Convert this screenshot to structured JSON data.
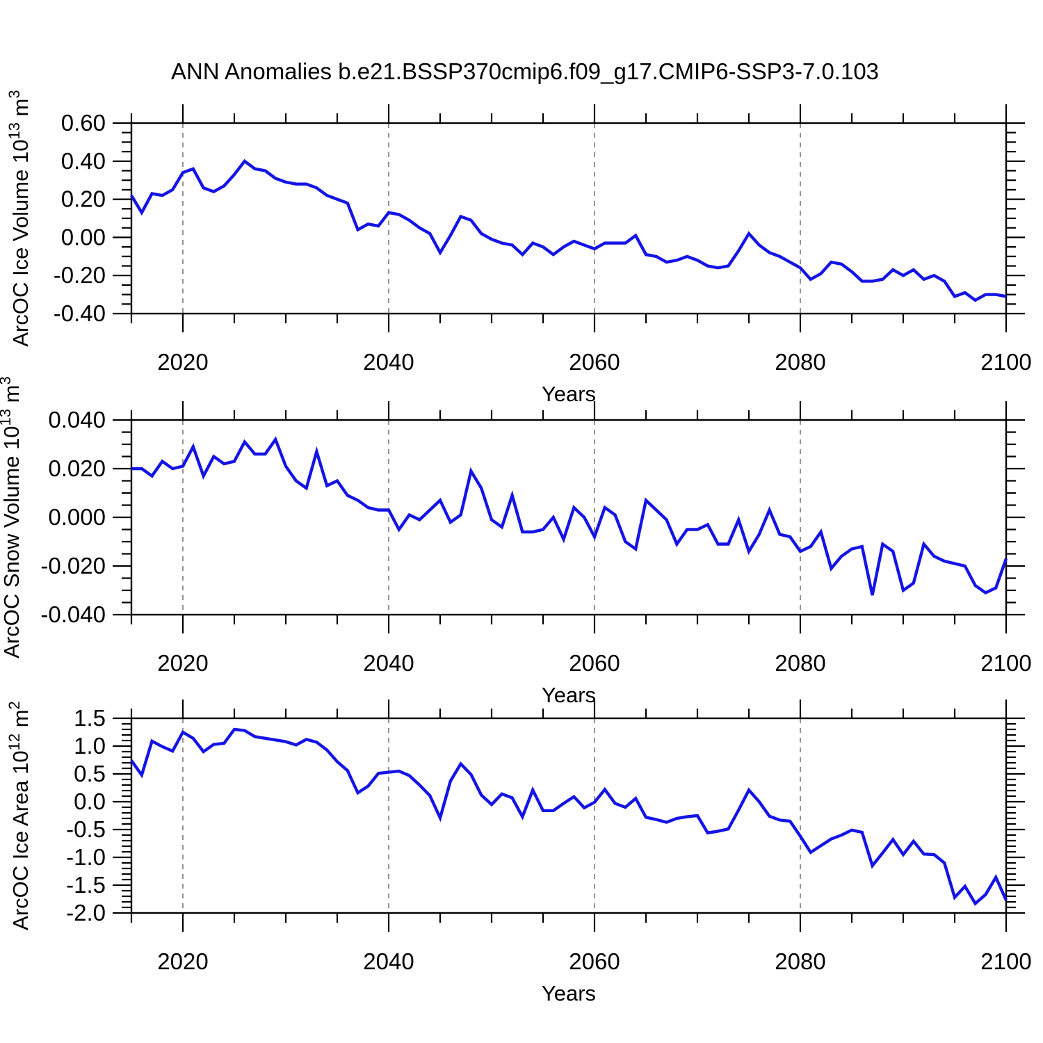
{
  "title": "ANN Anomalies b.e21.BSSP370cmip6.f09_g17.CMIP6-SSP3-7.0.103",
  "colors": {
    "line": "#1414e6",
    "axis": "#000000",
    "gridline": "#7a7a7a",
    "background": "#ffffff"
  },
  "chart_data": [
    {
      "type": "line",
      "title": "",
      "xlabel": "Years",
      "ylabel": "ArcOC Ice Volume 10¹³ m³",
      "ylabel_parts": [
        {
          "text": "ArcOC Ice Volume 10"
        },
        {
          "text": "13",
          "sup": true
        },
        {
          "text": " m"
        },
        {
          "text": "3",
          "sup": true
        }
      ],
      "xlim": [
        2015,
        2100
      ],
      "ylim": [
        -0.4,
        0.6
      ],
      "ytick_values": [
        0.6,
        0.4,
        0.2,
        0.0,
        -0.2,
        -0.4
      ],
      "ytick_labels": [
        "0.60",
        "0.40",
        "0.20",
        "0.00",
        "-0.20",
        "-0.40"
      ],
      "y_minor_per_major": 4,
      "xtick_major": [
        2020,
        2040,
        2060,
        2080,
        2100
      ],
      "xtick_labels": [
        "2020",
        "2040",
        "2060",
        "2080",
        "2100"
      ],
      "x_minor_step": 5,
      "gridlines_x": [
        2020,
        2040,
        2060,
        2080
      ],
      "x_start": 2015,
      "x_step": 1,
      "values": [
        0.22,
        0.13,
        0.23,
        0.22,
        0.25,
        0.34,
        0.36,
        0.26,
        0.24,
        0.27,
        0.33,
        0.4,
        0.36,
        0.35,
        0.31,
        0.29,
        0.28,
        0.28,
        0.26,
        0.22,
        0.2,
        0.18,
        0.04,
        0.07,
        0.06,
        0.13,
        0.12,
        0.09,
        0.05,
        0.02,
        -0.08,
        0.01,
        0.11,
        0.09,
        0.02,
        -0.01,
        -0.03,
        -0.04,
        -0.09,
        -0.03,
        -0.05,
        -0.09,
        -0.05,
        -0.02,
        -0.04,
        -0.06,
        -0.03,
        -0.03,
        -0.03,
        0.01,
        -0.09,
        -0.1,
        -0.13,
        -0.12,
        -0.1,
        -0.12,
        -0.15,
        -0.16,
        -0.15,
        -0.07,
        0.02,
        -0.04,
        -0.08,
        -0.1,
        -0.13,
        -0.16,
        -0.22,
        -0.19,
        -0.13,
        -0.14,
        -0.18,
        -0.23,
        -0.23,
        -0.22,
        -0.17,
        -0.2,
        -0.17,
        -0.22,
        -0.2,
        -0.23,
        -0.31,
        -0.29,
        -0.33,
        -0.3,
        -0.3,
        -0.31
      ]
    },
    {
      "type": "line",
      "title": "",
      "xlabel": "Years",
      "ylabel": "ArcOC Snow Volume 10¹³ m³",
      "ylabel_parts": [
        {
          "text": "ArcOC Snow Volume 10"
        },
        {
          "text": "13",
          "sup": true
        },
        {
          "text": " m"
        },
        {
          "text": "3",
          "sup": true
        }
      ],
      "xlim": [
        2015,
        2100
      ],
      "ylim": [
        -0.04,
        0.04
      ],
      "ytick_values": [
        0.04,
        0.02,
        0.0,
        -0.02,
        -0.04
      ],
      "ytick_labels": [
        "0.040",
        "0.020",
        "0.000",
        "-0.020",
        "-0.040"
      ],
      "y_minor_per_major": 4,
      "xtick_major": [
        2020,
        2040,
        2060,
        2080,
        2100
      ],
      "xtick_labels": [
        "2020",
        "2040",
        "2060",
        "2080",
        "2100"
      ],
      "x_minor_step": 5,
      "gridlines_x": [
        2020,
        2040,
        2060,
        2080
      ],
      "x_start": 2015,
      "x_step": 1,
      "values": [
        0.02,
        0.02,
        0.017,
        0.023,
        0.02,
        0.021,
        0.029,
        0.017,
        0.025,
        0.022,
        0.023,
        0.031,
        0.026,
        0.026,
        0.032,
        0.021,
        0.015,
        0.012,
        0.027,
        0.013,
        0.015,
        0.009,
        0.007,
        0.004,
        0.003,
        0.003,
        -0.005,
        0.001,
        -0.001,
        0.003,
        0.007,
        -0.002,
        0.001,
        0.019,
        0.012,
        -0.001,
        -0.004,
        0.009,
        -0.006,
        -0.006,
        -0.005,
        0.0,
        -0.009,
        0.004,
        0.0,
        -0.008,
        0.004,
        0.001,
        -0.01,
        -0.013,
        0.007,
        0.003,
        -0.001,
        -0.011,
        -0.005,
        -0.005,
        -0.003,
        -0.011,
        -0.011,
        -0.001,
        -0.014,
        -0.007,
        0.003,
        -0.007,
        -0.008,
        -0.014,
        -0.012,
        -0.006,
        -0.021,
        -0.016,
        -0.013,
        -0.012,
        -0.032,
        -0.011,
        -0.014,
        -0.03,
        -0.027,
        -0.011,
        -0.016,
        -0.018,
        -0.019,
        -0.02,
        -0.028,
        -0.031,
        -0.029,
        -0.017
      ]
    },
    {
      "type": "line",
      "title": "",
      "xlabel": "Years",
      "ylabel": "ArcOC Ice Area 10¹² m²",
      "ylabel_parts": [
        {
          "text": "ArcOC Ice Area 10"
        },
        {
          "text": "12",
          "sup": true
        },
        {
          "text": " m"
        },
        {
          "text": "2",
          "sup": true
        }
      ],
      "xlim": [
        2015,
        2100
      ],
      "ylim": [
        -2.0,
        1.5
      ],
      "ytick_values": [
        1.5,
        1.0,
        0.5,
        0.0,
        -0.5,
        -1.0,
        -1.5,
        -2.0
      ],
      "ytick_labels": [
        "1.5",
        "1.0",
        "0.5",
        "0.0",
        "-0.5",
        "-1.0",
        "-1.5",
        "-2.0"
      ],
      "y_minor_per_major": 5,
      "xtick_major": [
        2020,
        2040,
        2060,
        2080,
        2100
      ],
      "xtick_labels": [
        "2020",
        "2040",
        "2060",
        "2080",
        "2100"
      ],
      "x_minor_step": 5,
      "gridlines_x": [
        2020,
        2040,
        2060,
        2080
      ],
      "x_start": 2015,
      "x_step": 1,
      "values": [
        0.74,
        0.48,
        1.09,
        0.99,
        0.91,
        1.25,
        1.14,
        0.9,
        1.03,
        1.05,
        1.3,
        1.28,
        1.17,
        1.14,
        1.11,
        1.08,
        1.02,
        1.12,
        1.07,
        0.93,
        0.72,
        0.56,
        0.16,
        0.28,
        0.51,
        0.53,
        0.55,
        0.47,
        0.3,
        0.11,
        -0.29,
        0.37,
        0.68,
        0.49,
        0.12,
        -0.05,
        0.14,
        0.07,
        -0.27,
        0.21,
        -0.16,
        -0.16,
        -0.03,
        0.09,
        -0.11,
        -0.01,
        0.22,
        -0.03,
        -0.1,
        0.06,
        -0.28,
        -0.32,
        -0.37,
        -0.3,
        -0.27,
        -0.25,
        -0.56,
        -0.53,
        -0.49,
        -0.15,
        0.21,
        0.0,
        -0.26,
        -0.33,
        -0.35,
        -0.62,
        -0.91,
        -0.79,
        -0.67,
        -0.6,
        -0.51,
        -0.55,
        -1.15,
        -0.92,
        -0.68,
        -0.95,
        -0.71,
        -0.94,
        -0.95,
        -1.1,
        -1.72,
        -1.52,
        -1.83,
        -1.67,
        -1.36,
        -1.77
      ]
    }
  ]
}
